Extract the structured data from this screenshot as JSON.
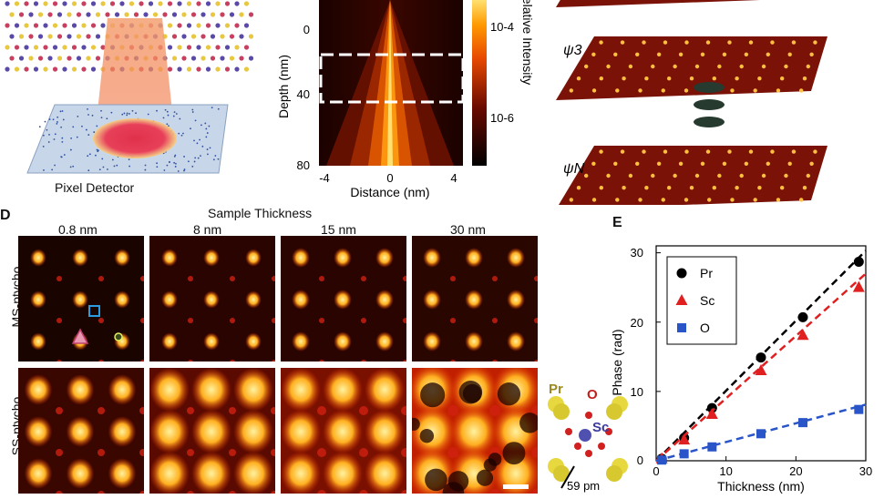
{
  "panel_a": {
    "detector_label": "Pixel Detector"
  },
  "panel_b": {
    "y_axis_label": "Depth (nm)",
    "x_axis_label": "Distance (nm)",
    "colorbar_label": "Relative Intensity",
    "colorbar_ticks": [
      "10-4",
      "10-6"
    ],
    "y_ticks": [
      "0",
      "40",
      "80"
    ],
    "x_ticks": [
      "-4",
      "0",
      "4"
    ]
  },
  "panel_c": {
    "slice_labels": [
      "ψ3",
      "ψN"
    ]
  },
  "panel_d": {
    "letter": "D",
    "title": "Sample Thickness",
    "columns": [
      "0.8 nm",
      "8 nm",
      "15 nm",
      "30 nm"
    ],
    "rows": [
      "MS-ptycho",
      "SS-ptycho"
    ],
    "legend_atoms": {
      "pr": "Pr",
      "o": "O",
      "sc": "Sc"
    },
    "scale_text": "59 pm"
  },
  "chart_data": {
    "type": "scatter",
    "letter": "E",
    "xlabel": "Thickness (nm)",
    "ylabel": "Phase (rad)",
    "xlim": [
      0,
      30
    ],
    "ylim": [
      0,
      31
    ],
    "x_ticks": [
      0,
      10,
      20,
      30
    ],
    "y_ticks": [
      0,
      10,
      20,
      30
    ],
    "grid": false,
    "legend_position": "top-left",
    "series": [
      {
        "name": "Pr",
        "color": "#000000",
        "marker": "circle",
        "x": [
          0.8,
          4,
          8,
          15,
          21,
          29
        ],
        "y": [
          0.3,
          3.3,
          7.6,
          14.9,
          20.7,
          28.7
        ],
        "fit_slope": 1.01
      },
      {
        "name": "Sc",
        "color": "#e02020",
        "marker": "triangle",
        "x": [
          0.8,
          4,
          8,
          15,
          21,
          29
        ],
        "y": [
          0.3,
          3.0,
          6.7,
          13.0,
          18.1,
          25.0
        ],
        "fit_slope": 0.9
      },
      {
        "name": "O",
        "color": "#2a55c8",
        "marker": "square",
        "x": [
          0.8,
          4,
          8,
          15,
          21,
          29
        ],
        "y": [
          0.1,
          1.0,
          2.0,
          3.9,
          5.5,
          7.4
        ],
        "fit_slope": 0.27
      }
    ]
  },
  "colors": {
    "accent_red": "#e02020",
    "accent_blue": "#2a55c8",
    "hot_bright": "#ffd23a"
  }
}
